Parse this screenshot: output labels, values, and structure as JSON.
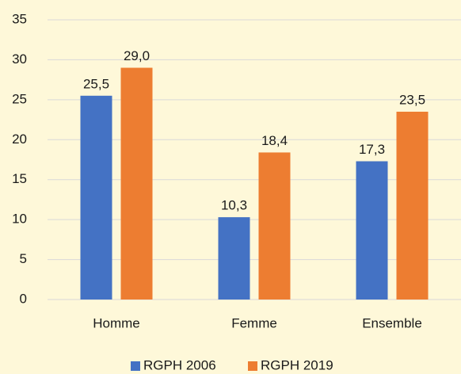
{
  "chart_data": {
    "type": "bar",
    "categories": [
      "Homme",
      "Femme",
      "Ensemble"
    ],
    "series": [
      {
        "name": "RGPH 2006",
        "color": "#4472c4",
        "values": [
          25.5,
          10.3,
          17.3
        ],
        "value_labels": [
          "25,5",
          "10,3",
          "17,3"
        ]
      },
      {
        "name": "RGPH 2019",
        "color": "#ed7d31",
        "values": [
          29.0,
          18.4,
          23.5
        ],
        "value_labels": [
          "29,0",
          "18,4",
          "23,5"
        ]
      }
    ],
    "ylim": [
      0,
      35
    ],
    "yticks": [
      0,
      5,
      10,
      15,
      20,
      25,
      30,
      35
    ],
    "grid": true,
    "legend": "bottom"
  }
}
